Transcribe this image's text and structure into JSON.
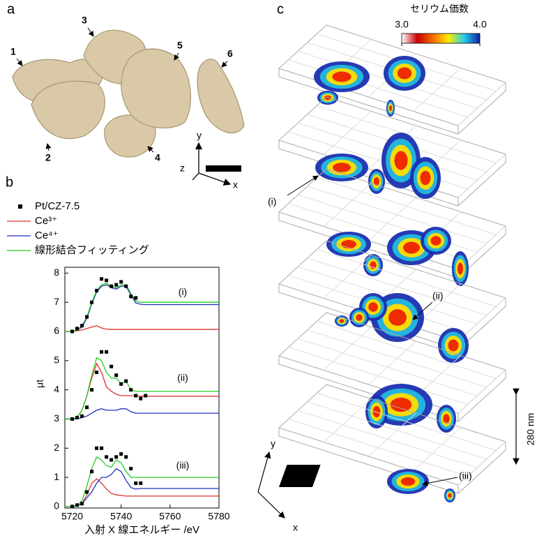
{
  "panel_a": {
    "label": "a",
    "particles": [
      "1",
      "2",
      "3",
      "4",
      "5",
      "6"
    ],
    "axes": [
      "y",
      "z",
      "x"
    ]
  },
  "panel_b": {
    "label": "b"
  },
  "panel_c": {
    "label": "c",
    "colorbar": {
      "title": "セリウム価数",
      "lim": [
        3,
        4
      ],
      "ticks": [
        {
          "value": 3,
          "label": "3.0"
        },
        {
          "value": 4,
          "label": "4.0"
        }
      ]
    },
    "scale": "280 nm",
    "slice_labels": [
      "(i)",
      "(ii)",
      "(iii)"
    ],
    "axes": [
      "y",
      "x"
    ]
  },
  "chart_data": {
    "type": "line",
    "xlabel": "入射 X 線エネルギー /eV",
    "ylabel": "μt",
    "xlim": [
      5717,
      5780
    ],
    "ylim": [
      -0.05,
      8.2
    ],
    "xticks": [
      5720,
      5740,
      5760,
      5780
    ],
    "yticks": [
      0,
      1,
      2,
      3,
      4,
      5,
      6,
      7,
      8
    ],
    "group_labels": [
      "(i)",
      "(ii)",
      "(iii)"
    ],
    "x": [
      5717,
      5720,
      5722,
      5724,
      5726,
      5728,
      5730,
      5732,
      5734,
      5736,
      5738,
      5740,
      5742,
      5744,
      5746,
      5748,
      5750,
      5760,
      5770,
      5780
    ],
    "series": [
      {
        "name": "Pt/CZ-7.5",
        "color": "#000000",
        "marker": "square",
        "x": [
          5720,
          5722,
          5724,
          5726,
          5728,
          5730,
          5732,
          5734,
          5736,
          5738,
          5740,
          5742,
          5744,
          5746,
          5748,
          5750
        ],
        "values": [
          [
            6.0,
            6.1,
            6.2,
            6.5,
            7.0,
            7.4,
            7.8,
            7.75,
            7.55,
            7.6,
            7.7,
            7.55,
            7.2,
            7.15,
            null,
            null
          ],
          [
            3.0,
            3.05,
            3.1,
            3.4,
            4.0,
            4.6,
            5.3,
            5.3,
            4.8,
            4.5,
            4.2,
            4.3,
            4.0,
            3.8,
            3.7,
            3.8
          ],
          [
            0.0,
            0.05,
            0.1,
            0.5,
            1.2,
            2.0,
            2.0,
            1.7,
            1.6,
            1.7,
            1.8,
            1.7,
            1.3,
            0.8,
            0.8,
            null
          ]
        ]
      },
      {
        "name": "Ce³⁺",
        "color": "#e03030",
        "values": [
          [
            6.0,
            6.0,
            6.02,
            6.05,
            6.1,
            6.15,
            6.2,
            6.12,
            6.08,
            6.07,
            6.07,
            6.07,
            6.07,
            6.07,
            6.07,
            6.07,
            6.07,
            6.07,
            6.07,
            6.07
          ],
          [
            3.0,
            3.0,
            3.05,
            3.3,
            3.8,
            4.4,
            4.9,
            4.6,
            4.1,
            3.95,
            3.85,
            3.8,
            3.8,
            3.8,
            3.8,
            3.78,
            3.78,
            3.78,
            3.78,
            3.78
          ],
          [
            0.0,
            0.0,
            0.03,
            0.1,
            0.4,
            0.8,
            0.95,
            0.8,
            0.6,
            0.45,
            0.4,
            0.38,
            0.36,
            0.36,
            0.36,
            0.36,
            0.36,
            0.36,
            0.36,
            0.36
          ]
        ]
      },
      {
        "name": "Ce⁴⁺",
        "color": "#2030c0",
        "values": [
          [
            6.0,
            6.0,
            6.05,
            6.15,
            6.45,
            6.95,
            7.35,
            7.55,
            7.6,
            7.5,
            7.45,
            7.55,
            7.55,
            7.25,
            6.98,
            6.93,
            6.92,
            6.92,
            6.92,
            6.92
          ],
          [
            3.0,
            3.0,
            3.0,
            3.05,
            3.1,
            3.2,
            3.3,
            3.35,
            3.3,
            3.3,
            3.3,
            3.35,
            3.35,
            3.25,
            3.2,
            3.2,
            3.2,
            3.2,
            3.2,
            3.2
          ],
          [
            0.0,
            0.0,
            0.02,
            0.1,
            0.3,
            0.5,
            0.8,
            1.0,
            1.0,
            1.1,
            1.3,
            1.2,
            0.9,
            0.65,
            0.6,
            0.62,
            0.62,
            0.62,
            0.62,
            0.62
          ]
        ]
      },
      {
        "name": "線形結合フィッティング",
        "color": "#22cc22",
        "values": [
          [
            6.0,
            6.0,
            6.05,
            6.2,
            6.5,
            7.0,
            7.4,
            7.6,
            7.65,
            7.55,
            7.5,
            7.6,
            7.6,
            7.3,
            7.05,
            7.0,
            7.0,
            7.0,
            7.0,
            7.0
          ],
          [
            3.0,
            3.0,
            3.05,
            3.3,
            3.8,
            4.5,
            5.1,
            5.0,
            4.6,
            4.4,
            4.4,
            4.2,
            4.3,
            4.0,
            3.95,
            3.95,
            3.95,
            3.95,
            3.95,
            3.95
          ],
          [
            0.0,
            0.0,
            0.05,
            0.2,
            0.7,
            1.3,
            1.7,
            1.6,
            1.4,
            1.35,
            1.6,
            1.5,
            1.2,
            1.0,
            1.0,
            1.0,
            1.0,
            1.0,
            1.0,
            1.0
          ]
        ]
      }
    ]
  }
}
